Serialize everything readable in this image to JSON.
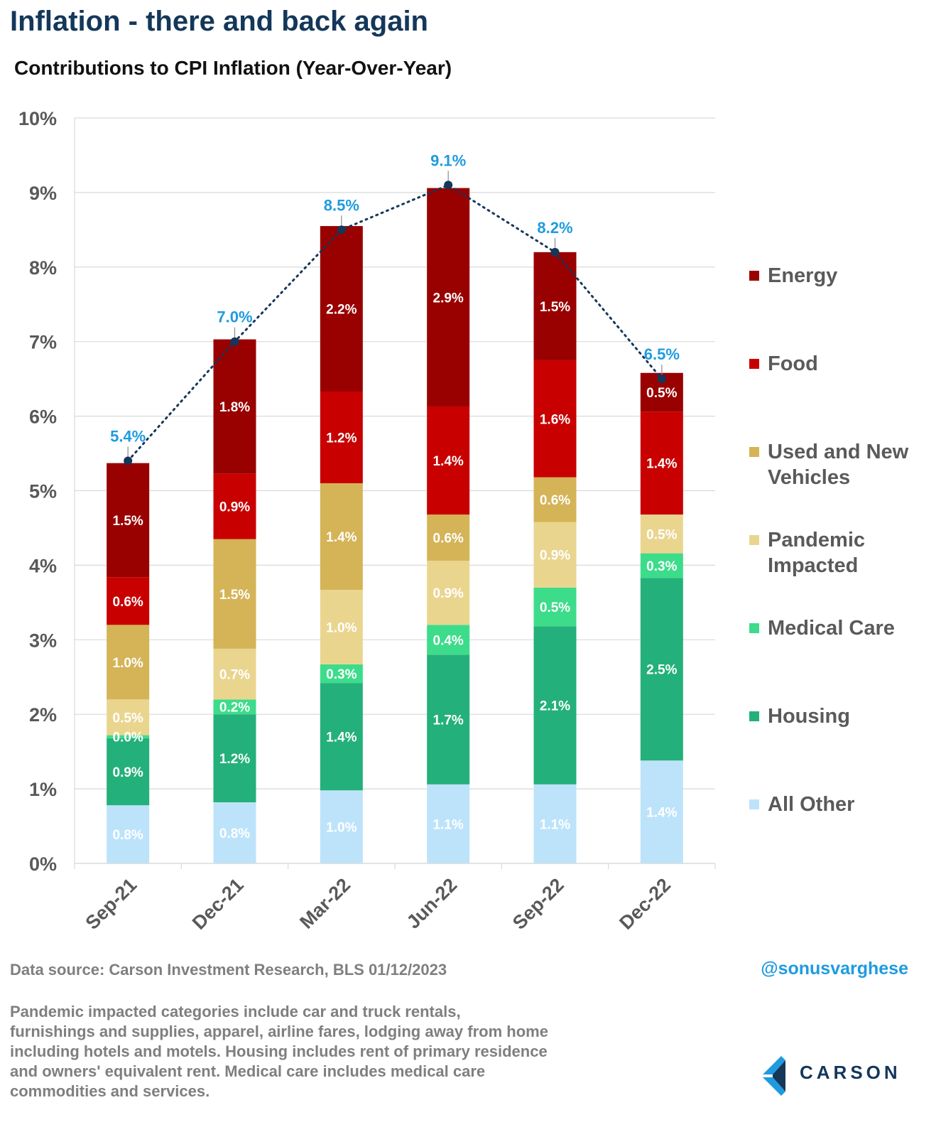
{
  "header": {
    "title": "Inflation - there and back again",
    "subtitle": "Contributions to CPI Inflation (Year-Over-Year)"
  },
  "chart_data": {
    "type": "bar",
    "stacked": true,
    "categories": [
      "Sep-21",
      "Dec-21",
      "Mar-22",
      "Jun-22",
      "Sep-22",
      "Dec-22"
    ],
    "ylim": [
      0,
      10
    ],
    "yticks": [
      "0%",
      "1%",
      "2%",
      "3%",
      "4%",
      "5%",
      "6%",
      "7%",
      "8%",
      "9%",
      "10%"
    ],
    "grid": true,
    "legend_position": "right",
    "series": [
      {
        "name": "All Other",
        "color": "#bde3fb",
        "label_color": "#ffffff",
        "values": [
          0.78,
          0.82,
          0.98,
          1.06,
          1.06,
          1.38
        ],
        "labels": [
          "0.8%",
          "0.8%",
          "1.0%",
          "1.1%",
          "1.1%",
          "1.4%"
        ]
      },
      {
        "name": "Housing",
        "color": "#24b07a",
        "label_color": "#ffffff",
        "values": [
          0.9,
          1.18,
          1.44,
          1.74,
          2.12,
          2.45
        ],
        "labels": [
          "0.9%",
          "1.2%",
          "1.4%",
          "1.7%",
          "2.1%",
          "2.5%"
        ]
      },
      {
        "name": "Medical Care",
        "color": "#3ddc8a",
        "label_color": "#ffffff",
        "values": [
          0.04,
          0.2,
          0.25,
          0.4,
          0.52,
          0.33
        ],
        "labels": [
          "0.0%",
          "0.2%",
          "0.3%",
          "0.4%",
          "0.5%",
          "0.3%"
        ]
      },
      {
        "name": "Pandemic Impacted",
        "color": "#ead58f",
        "label_color": "#ffffff",
        "values": [
          0.48,
          0.68,
          1.0,
          0.86,
          0.88,
          0.52
        ],
        "labels": [
          "0.5%",
          "0.7%",
          "1.0%",
          "0.9%",
          "0.9%",
          "0.5%"
        ]
      },
      {
        "name": "Used and New Vehicles",
        "color": "#d4b457",
        "label_color": "#ffffff",
        "values": [
          1.0,
          1.47,
          1.43,
          0.62,
          0.6,
          0
        ],
        "labels": [
          "1.0%",
          "1.5%",
          "1.4%",
          "0.6%",
          "0.6%",
          ""
        ]
      },
      {
        "name": "Food",
        "color": "#c80000",
        "label_color": "#ffffff",
        "values": [
          0.64,
          0.88,
          1.23,
          1.45,
          1.57,
          1.38
        ],
        "labels": [
          "0.6%",
          "0.9%",
          "1.2%",
          "1.4%",
          "1.6%",
          "1.4%"
        ]
      },
      {
        "name": "Energy",
        "color": "#990000",
        "label_color": "#ffffff",
        "values": [
          1.53,
          1.8,
          2.22,
          2.93,
          1.45,
          0.52
        ],
        "labels": [
          "1.5%",
          "1.8%",
          "2.2%",
          "2.9%",
          "1.5%",
          "0.5%"
        ]
      }
    ],
    "totals": {
      "values": [
        5.4,
        7.0,
        8.5,
        9.1,
        8.2,
        6.5
      ],
      "labels": [
        "5.4%",
        "7.0%",
        "8.5%",
        "9.1%",
        "8.2%",
        "6.5%"
      ],
      "color": "#1e9be0",
      "line_color": "#14375a"
    }
  },
  "legend_items": [
    {
      "label": "Energy",
      "color": "#990000"
    },
    {
      "label": "Food",
      "color": "#c80000"
    },
    {
      "label": "Used and New\nVehicles",
      "color": "#d4b457"
    },
    {
      "label": "Pandemic\nImpacted",
      "color": "#ead58f"
    },
    {
      "label": "Medical Care",
      "color": "#3ddc8a"
    },
    {
      "label": "Housing",
      "color": "#24b07a"
    },
    {
      "label": "All Other",
      "color": "#bde3fb"
    }
  ],
  "footer": {
    "source": "Data source: Carson Investment Research, BLS   01/12/2023",
    "handle": "@sonusvarghese",
    "note": "Pandemic impacted categories include car and truck rentals, furnishings and supplies, apparel, airline fares, lodging away from home including hotels and motels. Housing includes rent of primary residence and owners' equivalent rent. Medical care includes medical care commodities and services.",
    "logo_text": "CARSON"
  }
}
